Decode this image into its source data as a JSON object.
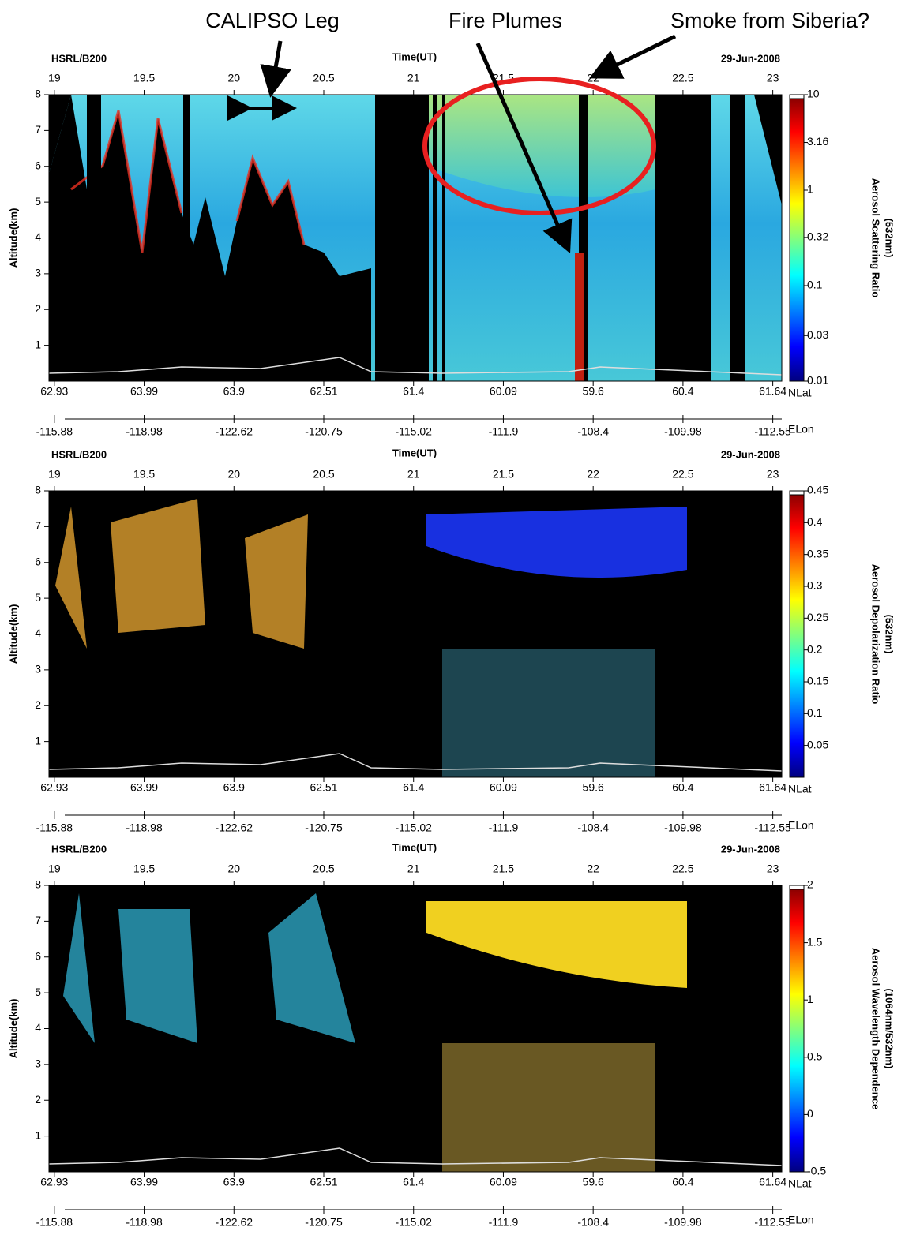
{
  "annotations": [
    "CALIPSO Leg",
    "Fire Plumes",
    "Smoke from Siberia?"
  ],
  "chart_data": [
    {
      "type": "curtain",
      "source": "HSRL/B200",
      "xlabel": "Time(UT)",
      "date": "29-Jun-2008",
      "ylabel": "Altitude(km)",
      "xlim": [
        18.97,
        23.05
      ],
      "xticks": [
        19,
        19.5,
        20,
        20.5,
        21,
        21.5,
        22,
        22.5,
        23
      ],
      "ylim": [
        0,
        8
      ],
      "yticks": [
        1,
        2,
        3,
        4,
        5,
        6,
        7,
        8
      ],
      "nlat": {
        "name": "NLat",
        "labels": [
          62.93,
          63.99,
          63.9,
          62.51,
          61.4,
          60.09,
          59.6,
          60.4,
          61.64
        ]
      },
      "elon": {
        "name": "ELon",
        "labels": [
          -115.88,
          -118.98,
          -122.62,
          -120.75,
          -115.02,
          -111.9,
          -108.4,
          -109.98,
          -112.55
        ]
      },
      "colorbar": {
        "label": [
          "Aerosol Scattering Ratio",
          "(532nm)"
        ],
        "lim": [
          0.01,
          10
        ],
        "log": true,
        "ticks": [
          0.01,
          0.03,
          0.1,
          0.32,
          1,
          3.16,
          10
        ]
      }
    },
    {
      "type": "curtain",
      "source": "HSRL/B200",
      "xlabel": "Time(UT)",
      "date": "29-Jun-2008",
      "ylabel": "Altitude(km)",
      "xlim": [
        18.97,
        23.05
      ],
      "xticks": [
        19,
        19.5,
        20,
        20.5,
        21,
        21.5,
        22,
        22.5,
        23
      ],
      "ylim": [
        0,
        8
      ],
      "yticks": [
        1,
        2,
        3,
        4,
        5,
        6,
        7,
        8
      ],
      "nlat": {
        "name": "NLat",
        "labels": [
          62.93,
          63.99,
          63.9,
          62.51,
          61.4,
          60.09,
          59.6,
          60.4,
          61.64
        ]
      },
      "elon": {
        "name": "ELon",
        "labels": [
          -115.88,
          -118.98,
          -122.62,
          -120.75,
          -115.02,
          -111.9,
          -108.4,
          -109.98,
          -112.55
        ]
      },
      "colorbar": {
        "label": [
          "Aerosol Depolarization Ratio",
          "(532nm)"
        ],
        "lim": [
          0,
          0.45
        ],
        "log": false,
        "ticks": [
          0.05,
          0.1,
          0.15,
          0.2,
          0.25,
          0.3,
          0.35,
          0.4,
          0.45
        ]
      }
    },
    {
      "type": "curtain",
      "source": "HSRL/B200",
      "xlabel": "Time(UT)",
      "date": "29-Jun-2008",
      "ylabel": "Altitude(km)",
      "xlim": [
        18.97,
        23.05
      ],
      "xticks": [
        19,
        19.5,
        20,
        20.5,
        21,
        21.5,
        22,
        22.5,
        23
      ],
      "ylim": [
        0,
        8
      ],
      "yticks": [
        1,
        2,
        3,
        4,
        5,
        6,
        7,
        8
      ],
      "nlat": {
        "name": "NLat",
        "labels": [
          62.93,
          63.99,
          63.9,
          62.51,
          61.4,
          60.09,
          59.6,
          60.4,
          61.64
        ]
      },
      "elon": {
        "name": "ELon",
        "labels": [
          -115.88,
          -118.98,
          -122.62,
          -120.75,
          -115.02,
          -111.9,
          -108.4,
          -109.98,
          -112.55
        ]
      },
      "colorbar": {
        "label": [
          "Aerosol Wavelength Dependence",
          "(1064nm/532nm)"
        ],
        "lim": [
          -0.5,
          2
        ],
        "log": false,
        "ticks": [
          -0.5,
          0,
          0.5,
          1,
          1.5,
          2
        ]
      }
    }
  ]
}
